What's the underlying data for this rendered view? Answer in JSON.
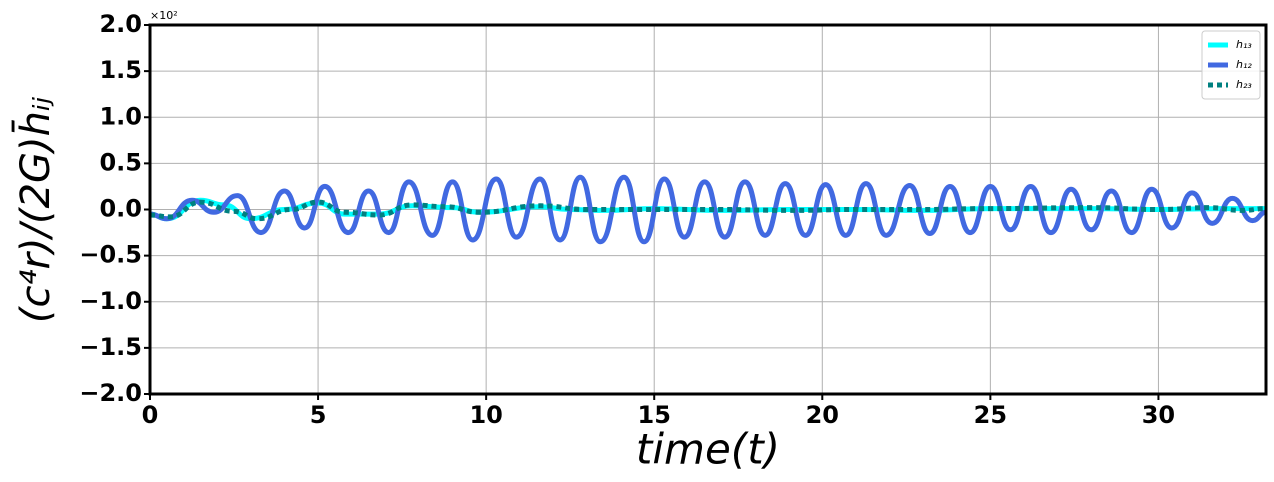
{
  "chart_data": {
    "type": "line",
    "y_label": "(c⁴r)/(2G)h̄ᵢⱼ",
    "x_label": "time(t)",
    "y_offset_label": "×10²",
    "xlim": [
      0,
      33.2
    ],
    "ylim": [
      -2,
      2
    ],
    "xticks": [
      0,
      5,
      10,
      15,
      20,
      25,
      30
    ],
    "yticks": [
      {
        "value": -2,
        "label": "−2.0"
      },
      {
        "value": -1.5,
        "label": "−1.5"
      },
      {
        "value": -1,
        "label": "−1.0"
      },
      {
        "value": -0.5,
        "label": "−0.5"
      },
      {
        "value": 0,
        "label": "0.0"
      },
      {
        "value": 0.5,
        "label": "0.5"
      },
      {
        "value": 1,
        "label": "1.0"
      },
      {
        "value": 1.5,
        "label": "1.5"
      },
      {
        "value": 2,
        "label": "2.0"
      }
    ],
    "grid": true,
    "legend": "upper right",
    "series": [
      {
        "name": "h₁₃",
        "color": "#00ffff",
        "style": "solid",
        "x": [
          0,
          0.5,
          1.5,
          2.2,
          3.0,
          4.0,
          5.0,
          5.8,
          6.8,
          7.8,
          9.0,
          9.8,
          11.6,
          12.5,
          13.5,
          15,
          17,
          19,
          21,
          23,
          25,
          26.5,
          28,
          30,
          32,
          33.2
        ],
        "values": [
          -0.05,
          -0.1,
          0.1,
          0.05,
          -0.1,
          0,
          0.07,
          -0.05,
          -0.05,
          0.04,
          0.02,
          -0.03,
          0.03,
          0,
          -0.01,
          0.01,
          -0.01,
          0,
          0,
          -0.01,
          0.01,
          0.01,
          0.01,
          0,
          0.01,
          0.01
        ]
      },
      {
        "name": "h₁₂",
        "color": "#4169e1",
        "style": "solid",
        "x": [
          0,
          0.5,
          1.25,
          1.9,
          2.6,
          3.3,
          4.0,
          4.6,
          5.2,
          5.9,
          6.5,
          7.1,
          7.7,
          8.4,
          9.0,
          9.6,
          10.3,
          10.9,
          11.6,
          12.2,
          12.8,
          13.4,
          14.1,
          14.7,
          15.3,
          15.9,
          16.5,
          17.1,
          17.7,
          18.3,
          18.9,
          19.5,
          20.1,
          20.7,
          21.3,
          21.9,
          22.6,
          23.2,
          23.8,
          24.4,
          25.0,
          25.6,
          26.2,
          26.8,
          27.4,
          28.0,
          28.6,
          29.2,
          29.8,
          30.4,
          31.0,
          31.6,
          32.2,
          32.8,
          33.2
        ],
        "values": [
          -0.05,
          -0.1,
          0.1,
          -0.03,
          0.15,
          -0.25,
          0.2,
          -0.2,
          0.25,
          -0.25,
          0.2,
          -0.25,
          0.3,
          -0.28,
          0.3,
          -0.33,
          0.33,
          -0.3,
          0.33,
          -0.33,
          0.35,
          -0.35,
          0.35,
          -0.35,
          0.33,
          -0.3,
          0.3,
          -0.3,
          0.3,
          -0.28,
          0.28,
          -0.28,
          0.27,
          -0.28,
          0.28,
          -0.28,
          0.26,
          -0.26,
          0.25,
          -0.25,
          0.25,
          -0.22,
          0.25,
          -0.25,
          0.22,
          -0.22,
          0.2,
          -0.25,
          0.22,
          -0.2,
          0.18,
          -0.15,
          0.12,
          -0.12,
          -0.03
        ]
      },
      {
        "name": "h₂₃",
        "color": "#008080",
        "style": "dotted",
        "x": [
          0,
          0.6,
          1.5,
          2.5,
          3.2,
          4.2,
          5.0,
          5.8,
          6.8,
          7.8,
          8.8,
          9.8,
          11.6,
          13,
          15,
          17,
          19,
          21,
          23,
          25,
          28,
          30,
          31.5,
          32.5,
          33.2
        ],
        "values": [
          -0.06,
          -0.08,
          0.08,
          -0.02,
          -0.1,
          0,
          0.08,
          -0.03,
          -0.06,
          0.05,
          0.03,
          -0.03,
          0.04,
          0,
          0,
          0,
          -0.01,
          0,
          0,
          0.01,
          0.02,
          0,
          0.02,
          -0.01,
          0.01
        ]
      }
    ]
  }
}
